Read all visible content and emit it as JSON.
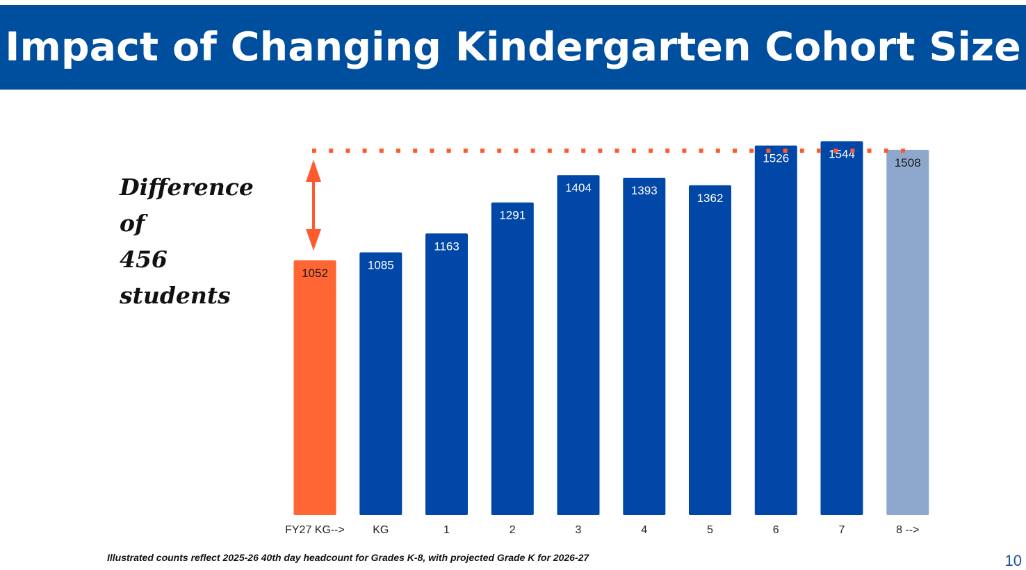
{
  "slide": {
    "title": "Impact of Changing Kindergarten Cohort Size",
    "annotation_line1": "Difference of",
    "annotation_line2": "456 students",
    "footnote": "Illustrated counts reflect 2025-26 40th day headcount for Grades K-8, with projected Grade K for 2026-27",
    "page_number": "10"
  },
  "colors": {
    "header_bg": "#004e9e",
    "bar_blue": "#0047a8",
    "bar_orange": "#ff6633",
    "bar_light": "#8ea8cd",
    "reference_line": "#ff5a2e"
  },
  "chart_data": {
    "type": "bar",
    "categories": [
      "FY27 KG-->",
      "KG",
      "1",
      "2",
      "3",
      "4",
      "5",
      "6",
      "7",
      "8 -->"
    ],
    "values": [
      1052,
      1085,
      1163,
      1291,
      1404,
      1393,
      1362,
      1526,
      1544,
      1508
    ],
    "data_labels": [
      "1052",
      "1085",
      "1163",
      "1291",
      "1404",
      "1393",
      "1362",
      "1526",
      "1544",
      "1508"
    ],
    "bar_colors": [
      "#ff6633",
      "#0047a8",
      "#0047a8",
      "#0047a8",
      "#0047a8",
      "#0047a8",
      "#0047a8",
      "#0047a8",
      "#0047a8",
      "#8ea8cd"
    ],
    "reference_line_value": 1508,
    "difference_arrow": {
      "from": 1052,
      "to": 1508
    },
    "title": "",
    "xlabel": "",
    "ylabel": "",
    "grid": false,
    "legend": "none"
  }
}
